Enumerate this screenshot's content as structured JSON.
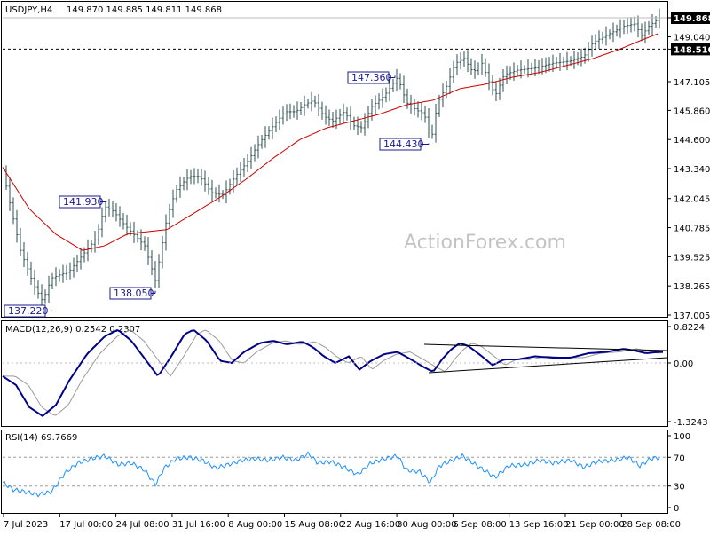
{
  "chart_data": {
    "type": "candlestick",
    "symbol_line": {
      "symbol": "USDJPY,H4",
      "values": "149.870 149.885 149.811 149.868"
    },
    "watermark": "ActionForex.com",
    "price_axis_ticks": [
      "149.868",
      "149.040",
      "148.510",
      "147.105",
      "145.860",
      "144.600",
      "143.340",
      "142.045",
      "140.785",
      "139.525",
      "138.265",
      "137.005"
    ],
    "current_price": "149.868",
    "horizontal_level": "148.510",
    "time_axis_labels": [
      "7 Jul 2023",
      "17 Jul 00:00",
      "24 Jul 08:00",
      "31 Jul 16:00",
      "8 Aug 00:00",
      "15 Aug 08:00",
      "22 Aug 16:00",
      "30 Aug 00:00",
      "6 Sep 08:00",
      "13 Sep 16:00",
      "21 Sep 00:00",
      "28 Sep 08:00"
    ],
    "callouts": [
      {
        "label": "147.360",
        "price": 147.36
      },
      {
        "label": "144.430",
        "price": 144.43
      },
      {
        "label": "141.930",
        "price": 141.93
      },
      {
        "label": "138.050",
        "price": 138.05
      },
      {
        "label": "137.220",
        "price": 137.22
      }
    ],
    "price_keypoints": [
      [
        0,
        143.3
      ],
      [
        10,
        141.5
      ],
      [
        20,
        139.8
      ],
      [
        35,
        138.3
      ],
      [
        45,
        137.6
      ],
      [
        55,
        138.6
      ],
      [
        75,
        138.9
      ],
      [
        90,
        139.6
      ],
      [
        105,
        140.3
      ],
      [
        115,
        141.7
      ],
      [
        125,
        141.5
      ],
      [
        135,
        141.0
      ],
      [
        145,
        140.6
      ],
      [
        160,
        140.0
      ],
      [
        172,
        138.5
      ],
      [
        178,
        139.7
      ],
      [
        185,
        141.2
      ],
      [
        195,
        142.4
      ],
      [
        210,
        143.0
      ],
      [
        222,
        143.0
      ],
      [
        235,
        142.3
      ],
      [
        248,
        142.2
      ],
      [
        262,
        143.0
      ],
      [
        275,
        143.6
      ],
      [
        290,
        144.5
      ],
      [
        305,
        145.2
      ],
      [
        318,
        145.8
      ],
      [
        330,
        145.8
      ],
      [
        340,
        146.1
      ],
      [
        350,
        146.3
      ],
      [
        362,
        145.6
      ],
      [
        372,
        145.4
      ],
      [
        385,
        145.8
      ],
      [
        395,
        145.2
      ],
      [
        405,
        145.1
      ],
      [
        415,
        146.0
      ],
      [
        430,
        146.5
      ],
      [
        445,
        147.3
      ],
      [
        455,
        146.2
      ],
      [
        465,
        145.9
      ],
      [
        475,
        145.7
      ],
      [
        483,
        144.6
      ],
      [
        490,
        146.2
      ],
      [
        500,
        146.9
      ],
      [
        510,
        147.9
      ],
      [
        520,
        148.1
      ],
      [
        530,
        147.5
      ],
      [
        540,
        147.9
      ],
      [
        548,
        147.1
      ],
      [
        555,
        146.5
      ],
      [
        565,
        147.4
      ],
      [
        580,
        147.6
      ],
      [
        600,
        147.7
      ],
      [
        620,
        147.9
      ],
      [
        640,
        148.0
      ],
      [
        655,
        148.2
      ],
      [
        665,
        148.8
      ],
      [
        680,
        149.1
      ],
      [
        700,
        149.5
      ],
      [
        712,
        149.6
      ],
      [
        720,
        149.1
      ],
      [
        728,
        149.5
      ],
      [
        740,
        149.87
      ]
    ],
    "moving_average": {
      "period": 50,
      "color": "#cc0000",
      "keypoints": [
        [
          0,
          143.4
        ],
        [
          30,
          141.6
        ],
        [
          60,
          140.5
        ],
        [
          90,
          139.8
        ],
        [
          115,
          140.0
        ],
        [
          140,
          140.5
        ],
        [
          160,
          140.6
        ],
        [
          185,
          140.7
        ],
        [
          215,
          141.4
        ],
        [
          245,
          142.1
        ],
        [
          275,
          142.9
        ],
        [
          305,
          143.8
        ],
        [
          335,
          144.6
        ],
        [
          365,
          145.1
        ],
        [
          395,
          145.4
        ],
        [
          425,
          145.7
        ],
        [
          455,
          146.1
        ],
        [
          485,
          146.3
        ],
        [
          515,
          146.8
        ],
        [
          545,
          147.0
        ],
        [
          575,
          147.3
        ],
        [
          605,
          147.5
        ],
        [
          635,
          147.8
        ],
        [
          665,
          148.1
        ],
        [
          695,
          148.5
        ],
        [
          720,
          148.9
        ],
        [
          740,
          149.2
        ]
      ]
    },
    "macd": {
      "label": "MACD(12,26,9) 0.2542 0.2307",
      "ticks": [
        "0.8224",
        "0.00",
        "-1.3243"
      ],
      "line_color": "#00008b",
      "signal_color": "#9a9a9a",
      "keypoints": [
        [
          0,
          -0.3
        ],
        [
          15,
          -0.5
        ],
        [
          30,
          -1.0
        ],
        [
          45,
          -1.2
        ],
        [
          60,
          -0.95
        ],
        [
          75,
          -0.4
        ],
        [
          95,
          0.2
        ],
        [
          115,
          0.6
        ],
        [
          130,
          0.75
        ],
        [
          145,
          0.5
        ],
        [
          160,
          0.1
        ],
        [
          175,
          -0.3
        ],
        [
          190,
          0.15
        ],
        [
          205,
          0.65
        ],
        [
          215,
          0.75
        ],
        [
          230,
          0.5
        ],
        [
          245,
          0.05
        ],
        [
          258,
          0.0
        ],
        [
          272,
          0.25
        ],
        [
          290,
          0.45
        ],
        [
          305,
          0.5
        ],
        [
          320,
          0.42
        ],
        [
          338,
          0.48
        ],
        [
          350,
          0.35
        ],
        [
          362,
          0.15
        ],
        [
          375,
          0.0
        ],
        [
          390,
          0.15
        ],
        [
          402,
          -0.15
        ],
        [
          415,
          0.05
        ],
        [
          430,
          0.2
        ],
        [
          445,
          0.25
        ],
        [
          460,
          0.08
        ],
        [
          475,
          -0.1
        ],
        [
          485,
          -0.2
        ],
        [
          495,
          0.08
        ],
        [
          505,
          0.3
        ],
        [
          515,
          0.45
        ],
        [
          525,
          0.38
        ],
        [
          540,
          0.15
        ],
        [
          552,
          -0.05
        ],
        [
          565,
          0.08
        ],
        [
          580,
          0.08
        ],
        [
          600,
          0.15
        ],
        [
          620,
          0.12
        ],
        [
          640,
          0.12
        ],
        [
          660,
          0.22
        ],
        [
          680,
          0.25
        ],
        [
          700,
          0.32
        ],
        [
          712,
          0.28
        ],
        [
          725,
          0.22
        ],
        [
          740,
          0.25
        ]
      ],
      "trendlines": [
        {
          "from": [
            475,
            0.42
          ],
          "to": [
            752,
            0.28
          ]
        },
        {
          "from": [
            480,
            -0.22
          ],
          "to": [
            752,
            0.12
          ]
        }
      ]
    },
    "rsi": {
      "label": "RSI(14) 69.7669",
      "ticks": [
        "100",
        "70",
        "30",
        "0"
      ],
      "line_color": "#1e90ff",
      "keypoints": [
        [
          0,
          35
        ],
        [
          12,
          25
        ],
        [
          25,
          22
        ],
        [
          40,
          18
        ],
        [
          55,
          22
        ],
        [
          70,
          48
        ],
        [
          85,
          62
        ],
        [
          100,
          68
        ],
        [
          115,
          72
        ],
        [
          130,
          60
        ],
        [
          145,
          62
        ],
        [
          160,
          52
        ],
        [
          172,
          32
        ],
        [
          182,
          55
        ],
        [
          195,
          68
        ],
        [
          210,
          70
        ],
        [
          225,
          66
        ],
        [
          240,
          55
        ],
        [
          255,
          60
        ],
        [
          270,
          66
        ],
        [
          285,
          68
        ],
        [
          300,
          66
        ],
        [
          315,
          70
        ],
        [
          330,
          66
        ],
        [
          345,
          75
        ],
        [
          355,
          62
        ],
        [
          370,
          64
        ],
        [
          385,
          56
        ],
        [
          400,
          46
        ],
        [
          415,
          62
        ],
        [
          430,
          68
        ],
        [
          445,
          72
        ],
        [
          455,
          52
        ],
        [
          470,
          50
        ],
        [
          482,
          35
        ],
        [
          492,
          58
        ],
        [
          505,
          65
        ],
        [
          518,
          72
        ],
        [
          530,
          62
        ],
        [
          545,
          50
        ],
        [
          555,
          42
        ],
        [
          570,
          58
        ],
        [
          590,
          60
        ],
        [
          605,
          66
        ],
        [
          620,
          62
        ],
        [
          640,
          66
        ],
        [
          655,
          56
        ],
        [
          670,
          64
        ],
        [
          690,
          66
        ],
        [
          705,
          70
        ],
        [
          718,
          58
        ],
        [
          730,
          68
        ],
        [
          740,
          70
        ]
      ]
    }
  }
}
